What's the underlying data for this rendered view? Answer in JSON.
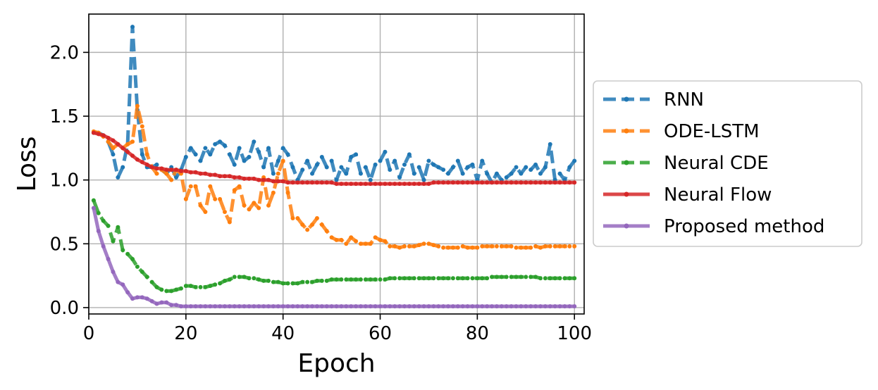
{
  "chart_data": {
    "type": "line",
    "xlabel": "Epoch",
    "ylabel": "Loss",
    "xlim": [
      0,
      102
    ],
    "ylim": [
      -0.05,
      2.3
    ],
    "xticks": [
      0,
      20,
      40,
      60,
      80,
      100
    ],
    "yticks": [
      0.0,
      0.5,
      1.0,
      1.5,
      2.0
    ],
    "xtick_labels": [
      "0",
      "20",
      "40",
      "60",
      "80",
      "100"
    ],
    "ytick_labels": [
      "0.0",
      "0.5",
      "1.0",
      "1.5",
      "2.0"
    ],
    "grid": true,
    "legend_position": "outside-right",
    "series": [
      {
        "name": "RNN",
        "color": "#1f77b4",
        "style": "dashed",
        "x": [
          1,
          2,
          3,
          4,
          5,
          6,
          7,
          8,
          9,
          10,
          11,
          12,
          13,
          14,
          15,
          16,
          17,
          18,
          19,
          20,
          21,
          22,
          23,
          24,
          25,
          26,
          27,
          28,
          29,
          30,
          31,
          32,
          33,
          34,
          35,
          36,
          37,
          38,
          39,
          40,
          41,
          42,
          43,
          44,
          45,
          46,
          47,
          48,
          49,
          50,
          51,
          52,
          53,
          54,
          55,
          56,
          57,
          58,
          59,
          60,
          61,
          62,
          63,
          64,
          65,
          66,
          67,
          68,
          69,
          70,
          71,
          72,
          73,
          74,
          75,
          76,
          77,
          78,
          79,
          80,
          81,
          82,
          83,
          84,
          85,
          86,
          87,
          88,
          89,
          90,
          91,
          92,
          93,
          94,
          95,
          96,
          97,
          98,
          99,
          100
        ],
        "values": [
          1.37,
          1.37,
          1.35,
          1.3,
          1.2,
          1.02,
          1.1,
          1.28,
          2.2,
          1.55,
          1.2,
          1.1,
          1.1,
          1.12,
          1.08,
          1.05,
          1.1,
          1.02,
          1.08,
          1.18,
          1.25,
          1.2,
          1.15,
          1.25,
          1.2,
          1.28,
          1.3,
          1.27,
          1.2,
          1.12,
          1.25,
          1.15,
          1.18,
          1.3,
          1.22,
          1.1,
          1.25,
          1.05,
          1.15,
          1.25,
          1.2,
          1.1,
          1.0,
          1.08,
          1.15,
          1.05,
          1.12,
          1.18,
          1.1,
          1.15,
          1.0,
          1.1,
          1.05,
          1.18,
          1.2,
          1.05,
          1.1,
          1.0,
          1.12,
          1.15,
          1.22,
          1.08,
          1.15,
          1.02,
          1.12,
          1.2,
          1.05,
          1.1,
          1.0,
          1.15,
          1.12,
          1.1,
          1.08,
          1.05,
          1.1,
          1.15,
          1.05,
          1.1,
          1.12,
          1.0,
          1.15,
          1.05,
          0.98,
          1.05,
          1.0,
          1.02,
          1.05,
          1.1,
          1.05,
          1.1,
          1.08,
          1.12,
          1.05,
          1.1,
          1.28,
          1.0,
          1.05,
          1.0,
          1.1,
          1.15
        ]
      },
      {
        "name": "ODE-LSTM",
        "color": "#ff7f0e",
        "style": "dashed",
        "x": [
          1,
          2,
          3,
          4,
          5,
          6,
          7,
          8,
          9,
          10,
          11,
          12,
          13,
          14,
          15,
          16,
          17,
          18,
          19,
          20,
          21,
          22,
          23,
          24,
          25,
          26,
          27,
          28,
          29,
          30,
          31,
          32,
          33,
          34,
          35,
          36,
          37,
          38,
          39,
          40,
          41,
          42,
          43,
          44,
          45,
          46,
          47,
          48,
          49,
          50,
          51,
          52,
          53,
          54,
          55,
          56,
          57,
          58,
          59,
          60,
          61,
          62,
          63,
          64,
          65,
          66,
          67,
          68,
          69,
          70,
          71,
          72,
          73,
          74,
          75,
          76,
          77,
          78,
          79,
          80,
          81,
          82,
          83,
          84,
          85,
          86,
          87,
          88,
          89,
          90,
          91,
          92,
          93,
          94,
          95,
          96,
          97,
          98,
          99,
          100
        ],
        "values": [
          1.38,
          1.37,
          1.34,
          1.3,
          1.25,
          1.28,
          1.25,
          1.28,
          1.3,
          1.58,
          1.42,
          1.2,
          1.1,
          1.05,
          1.08,
          1.05,
          1.0,
          1.08,
          1.05,
          0.85,
          0.95,
          0.95,
          0.8,
          0.75,
          0.95,
          0.85,
          0.85,
          0.75,
          0.67,
          0.92,
          0.95,
          0.8,
          0.77,
          0.82,
          0.78,
          1.02,
          0.8,
          0.9,
          1.05,
          1.15,
          0.9,
          0.7,
          0.7,
          0.65,
          0.61,
          0.65,
          0.7,
          0.65,
          0.6,
          0.55,
          0.53,
          0.53,
          0.5,
          0.55,
          0.52,
          0.5,
          0.5,
          0.5,
          0.55,
          0.53,
          0.52,
          0.48,
          0.48,
          0.47,
          0.48,
          0.48,
          0.48,
          0.49,
          0.5,
          0.5,
          0.49,
          0.48,
          0.47,
          0.47,
          0.47,
          0.47,
          0.48,
          0.47,
          0.47,
          0.47,
          0.48,
          0.48,
          0.48,
          0.48,
          0.48,
          0.48,
          0.48,
          0.47,
          0.47,
          0.47,
          0.47,
          0.48,
          0.47,
          0.48,
          0.48,
          0.48,
          0.48,
          0.48,
          0.48,
          0.48
        ]
      },
      {
        "name": "Neural CDE",
        "color": "#2ca02c",
        "style": "dashed",
        "x": [
          1,
          2,
          3,
          4,
          5,
          6,
          7,
          8,
          9,
          10,
          11,
          12,
          13,
          14,
          15,
          16,
          17,
          18,
          19,
          20,
          21,
          22,
          23,
          24,
          25,
          26,
          27,
          28,
          29,
          30,
          31,
          32,
          33,
          34,
          35,
          36,
          37,
          38,
          39,
          40,
          41,
          42,
          43,
          44,
          45,
          46,
          47,
          48,
          49,
          50,
          51,
          52,
          53,
          54,
          55,
          56,
          57,
          58,
          59,
          60,
          61,
          62,
          63,
          64,
          65,
          66,
          67,
          68,
          69,
          70,
          71,
          72,
          73,
          74,
          75,
          76,
          77,
          78,
          79,
          80,
          81,
          82,
          83,
          84,
          85,
          86,
          87,
          88,
          89,
          90,
          91,
          92,
          93,
          94,
          95,
          96,
          97,
          98,
          99,
          100
        ],
        "values": [
          0.84,
          0.74,
          0.68,
          0.64,
          0.52,
          0.63,
          0.45,
          0.42,
          0.38,
          0.32,
          0.28,
          0.24,
          0.2,
          0.16,
          0.14,
          0.13,
          0.13,
          0.14,
          0.15,
          0.17,
          0.17,
          0.16,
          0.16,
          0.16,
          0.17,
          0.18,
          0.19,
          0.21,
          0.22,
          0.24,
          0.24,
          0.24,
          0.23,
          0.23,
          0.22,
          0.21,
          0.21,
          0.2,
          0.2,
          0.19,
          0.19,
          0.19,
          0.19,
          0.2,
          0.2,
          0.2,
          0.21,
          0.21,
          0.21,
          0.22,
          0.22,
          0.22,
          0.22,
          0.22,
          0.22,
          0.22,
          0.22,
          0.22,
          0.22,
          0.22,
          0.22,
          0.23,
          0.23,
          0.23,
          0.23,
          0.23,
          0.23,
          0.23,
          0.23,
          0.23,
          0.23,
          0.23,
          0.23,
          0.23,
          0.23,
          0.23,
          0.23,
          0.23,
          0.23,
          0.23,
          0.23,
          0.23,
          0.24,
          0.24,
          0.24,
          0.24,
          0.24,
          0.24,
          0.24,
          0.24,
          0.24,
          0.24,
          0.23,
          0.23,
          0.23,
          0.23,
          0.23,
          0.23,
          0.23,
          0.23
        ]
      },
      {
        "name": "Neural Flow",
        "color": "#d62728",
        "style": "solid",
        "x": [
          1,
          2,
          3,
          4,
          5,
          6,
          7,
          8,
          9,
          10,
          11,
          12,
          13,
          14,
          15,
          16,
          17,
          18,
          19,
          20,
          21,
          22,
          23,
          24,
          25,
          26,
          27,
          28,
          29,
          30,
          31,
          32,
          33,
          34,
          35,
          36,
          37,
          38,
          39,
          40,
          41,
          42,
          43,
          44,
          45,
          46,
          47,
          48,
          49,
          50,
          51,
          52,
          53,
          54,
          55,
          56,
          57,
          58,
          59,
          60,
          61,
          62,
          63,
          64,
          65,
          66,
          67,
          68,
          69,
          70,
          71,
          72,
          73,
          74,
          75,
          76,
          77,
          78,
          79,
          80,
          81,
          82,
          83,
          84,
          85,
          86,
          87,
          88,
          89,
          90,
          91,
          92,
          93,
          94,
          95,
          96,
          97,
          98,
          99,
          100
        ],
        "values": [
          1.37,
          1.36,
          1.35,
          1.33,
          1.31,
          1.28,
          1.25,
          1.22,
          1.19,
          1.16,
          1.14,
          1.12,
          1.1,
          1.09,
          1.09,
          1.08,
          1.08,
          1.08,
          1.07,
          1.07,
          1.06,
          1.06,
          1.05,
          1.05,
          1.04,
          1.04,
          1.03,
          1.03,
          1.03,
          1.02,
          1.02,
          1.01,
          1.01,
          1.01,
          1.0,
          1.0,
          1.0,
          0.99,
          0.99,
          0.99,
          0.98,
          0.98,
          0.98,
          0.98,
          0.98,
          0.98,
          0.98,
          0.98,
          0.98,
          0.98,
          0.97,
          0.97,
          0.97,
          0.97,
          0.97,
          0.97,
          0.97,
          0.97,
          0.97,
          0.97,
          0.97,
          0.97,
          0.97,
          0.97,
          0.97,
          0.97,
          0.97,
          0.97,
          0.97,
          0.97,
          0.98,
          0.98,
          0.98,
          0.98,
          0.98,
          0.98,
          0.98,
          0.98,
          0.98,
          0.98,
          0.98,
          0.98,
          0.98,
          0.98,
          0.98,
          0.98,
          0.98,
          0.98,
          0.98,
          0.98,
          0.98,
          0.98,
          0.98,
          0.98,
          0.98,
          0.98,
          0.98,
          0.98,
          0.98,
          0.98
        ]
      },
      {
        "name": "Proposed method",
        "color": "#9467bd",
        "style": "solid",
        "x": [
          1,
          2,
          3,
          4,
          5,
          6,
          7,
          8,
          9,
          10,
          11,
          12,
          13,
          14,
          15,
          16,
          17,
          18,
          19,
          20,
          21,
          22,
          23,
          24,
          25,
          26,
          27,
          28,
          29,
          30,
          31,
          32,
          33,
          34,
          35,
          36,
          37,
          38,
          39,
          40,
          41,
          42,
          43,
          44,
          45,
          46,
          47,
          48,
          49,
          50,
          51,
          52,
          53,
          54,
          55,
          56,
          57,
          58,
          59,
          60,
          61,
          62,
          63,
          64,
          65,
          66,
          67,
          68,
          69,
          70,
          71,
          72,
          73,
          74,
          75,
          76,
          77,
          78,
          79,
          80,
          81,
          82,
          83,
          84,
          85,
          86,
          87,
          88,
          89,
          90,
          91,
          92,
          93,
          94,
          95,
          96,
          97,
          98,
          99,
          100
        ],
        "values": [
          0.78,
          0.6,
          0.48,
          0.38,
          0.28,
          0.2,
          0.18,
          0.12,
          0.07,
          0.08,
          0.08,
          0.07,
          0.05,
          0.03,
          0.04,
          0.04,
          0.02,
          0.02,
          0.01,
          0.01,
          0.01,
          0.01,
          0.01,
          0.01,
          0.01,
          0.01,
          0.01,
          0.01,
          0.01,
          0.01,
          0.01,
          0.01,
          0.01,
          0.01,
          0.01,
          0.01,
          0.01,
          0.01,
          0.01,
          0.01,
          0.01,
          0.01,
          0.01,
          0.01,
          0.01,
          0.01,
          0.01,
          0.01,
          0.01,
          0.01,
          0.01,
          0.01,
          0.01,
          0.01,
          0.01,
          0.01,
          0.01,
          0.01,
          0.01,
          0.01,
          0.01,
          0.01,
          0.01,
          0.01,
          0.01,
          0.01,
          0.01,
          0.01,
          0.01,
          0.01,
          0.01,
          0.01,
          0.01,
          0.01,
          0.01,
          0.01,
          0.01,
          0.01,
          0.01,
          0.01,
          0.01,
          0.01,
          0.01,
          0.01,
          0.01,
          0.01,
          0.01,
          0.01,
          0.01,
          0.01,
          0.01,
          0.01,
          0.01,
          0.01,
          0.01,
          0.01,
          0.01,
          0.01,
          0.01,
          0.01
        ]
      }
    ]
  }
}
